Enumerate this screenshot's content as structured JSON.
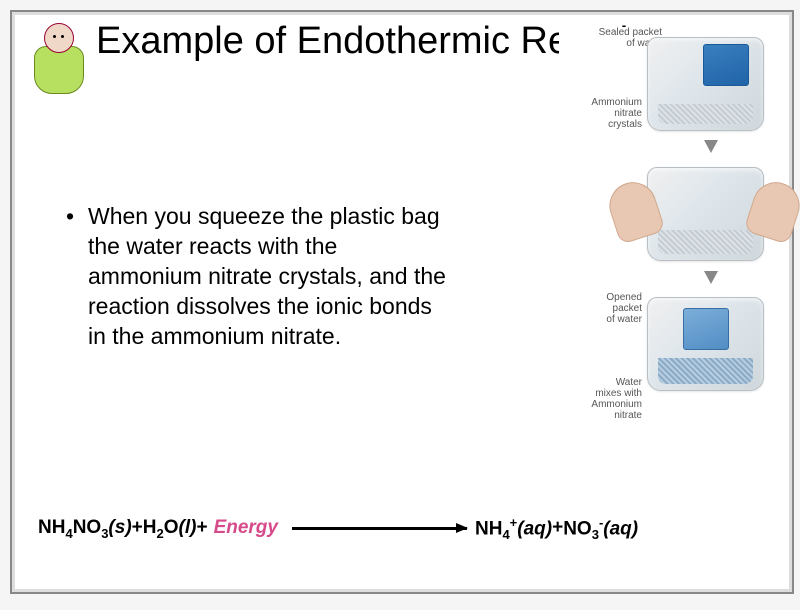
{
  "title": "Example of Endothermic Reactions",
  "bullet_text": "When you squeeze the plastic bag the water reacts with the ammonium nitrate crystals, and the reaction dissolves the ionic bonds in the ammonium nitrate.",
  "diagram": {
    "labels": {
      "sealed_packet": "Sealed packet\nof water",
      "ammonium_crystals": "Ammonium\nnitrate\ncrystals",
      "opened_packet": "Opened\npacket\nof water",
      "water_mixes": "Water\nmixes with\nAmmonium\nnitrate"
    },
    "pack_bg": "#e0e7ec",
    "water_color": "#2064a8",
    "hand_color": "#e8c8b2",
    "arrow_color": "#888888"
  },
  "equation": {
    "reactant1": "NH",
    "reactant1_sub1": "4",
    "reactant1_mid": "NO",
    "reactant1_sub2": "3",
    "reactant1_state": "(s)",
    "plus": " + ",
    "reactant2": "H",
    "reactant2_sub": "2",
    "reactant2_mid": "O",
    "reactant2_state": "(l)",
    "energy": "Energy",
    "product1": "NH",
    "product1_sub": "4",
    "product1_sup": "+",
    "product1_state": "(aq)",
    "product2": "NO",
    "product2_sub": "3",
    "product2_sup": "-",
    "product2_state": "(aq)",
    "energy_color": "#d64a8a"
  },
  "colors": {
    "slide_border": "#888888",
    "slide_inner_border": "#dddddd",
    "text": "#000000",
    "label_text": "#555555"
  }
}
